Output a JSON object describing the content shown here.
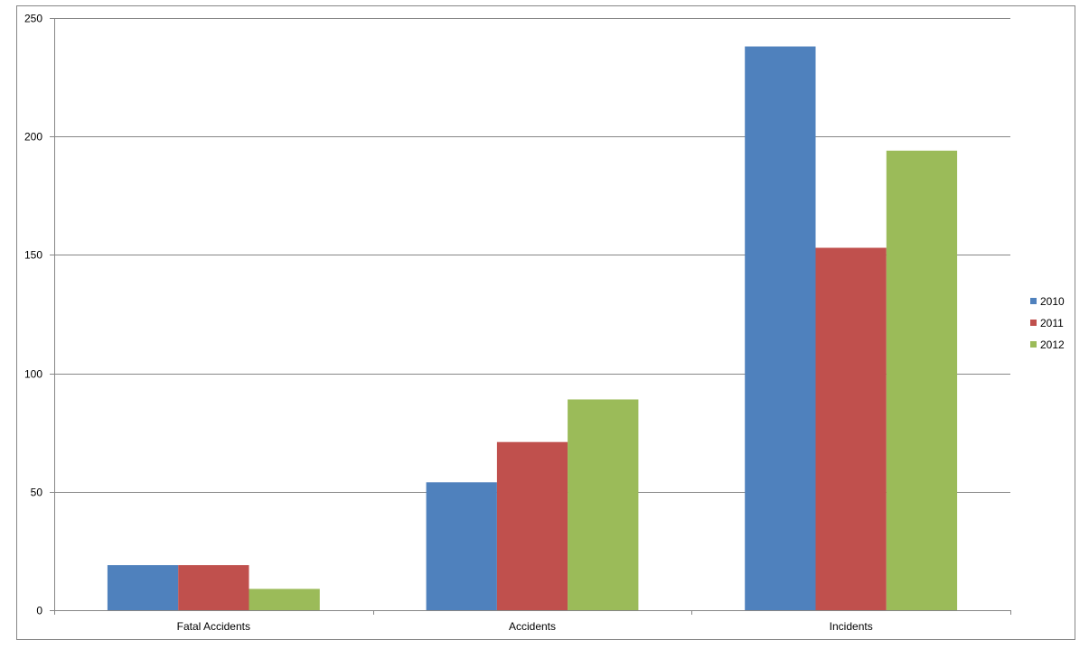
{
  "chart_data": {
    "type": "bar",
    "title": "",
    "xlabel": "",
    "ylabel": "",
    "categories": [
      "Fatal Accidents",
      "Accidents",
      "Incidents"
    ],
    "series": [
      {
        "name": "2010",
        "color": "#4F81BD",
        "values": [
          19,
          54,
          238
        ]
      },
      {
        "name": "2011",
        "color": "#C0504D",
        "values": [
          19,
          71,
          153
        ]
      },
      {
        "name": "2012",
        "color": "#9BBB59",
        "values": [
          9,
          89,
          194
        ]
      }
    ],
    "ylim": [
      0,
      250
    ],
    "yticks": [
      0,
      50,
      100,
      150,
      200,
      250
    ],
    "grid": true,
    "legend": "right"
  }
}
